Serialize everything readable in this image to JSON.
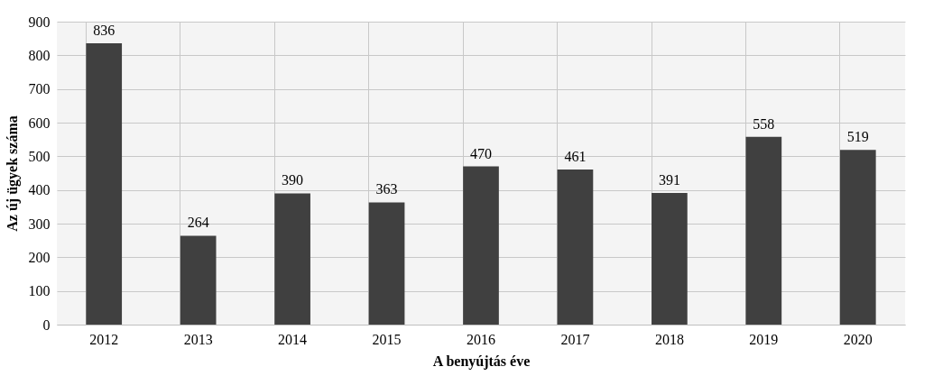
{
  "chart_data": {
    "type": "bar",
    "xlabel": "A benyújtás éve",
    "ylabel": "Az új ügyek száma",
    "categories": [
      "2012",
      "2013",
      "2014",
      "2015",
      "2016",
      "2017",
      "2018",
      "2019",
      "2020"
    ],
    "values": [
      836,
      264,
      390,
      363,
      470,
      461,
      391,
      558,
      519
    ],
    "color": "#404040",
    "ylim": [
      0,
      900
    ],
    "yticks": [
      0,
      100,
      200,
      300,
      400,
      500,
      600,
      700,
      800,
      900
    ],
    "grid": true,
    "data_labels": true
  }
}
